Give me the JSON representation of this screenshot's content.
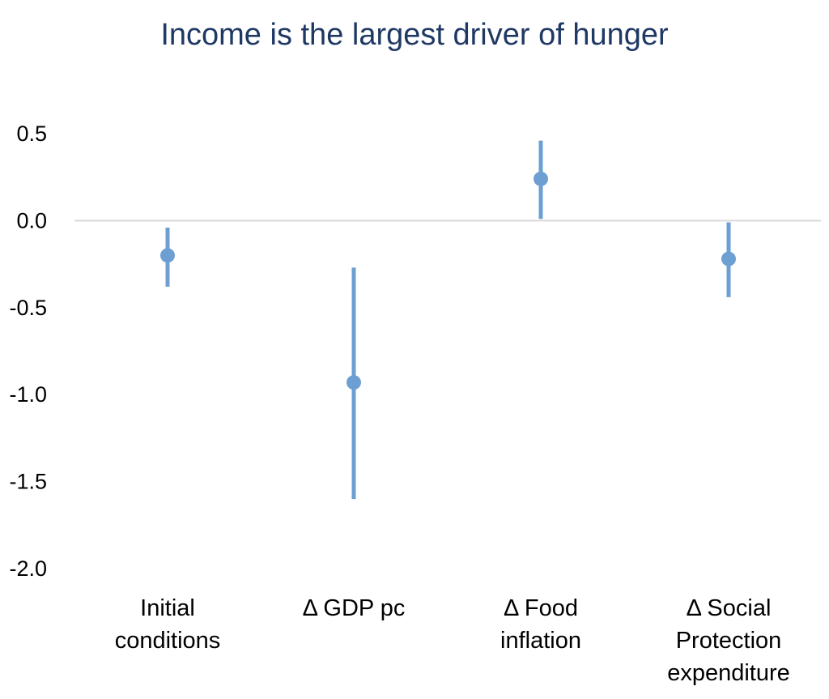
{
  "chart_data": {
    "type": "scatter",
    "title": "Income is the largest driver of hunger",
    "xlabel": "",
    "ylabel": "",
    "ylim": [
      -2.0,
      0.5
    ],
    "yticks": [
      0.5,
      0.0,
      -0.5,
      -1.0,
      -1.5,
      -2.0
    ],
    "ytick_labels": [
      "0.5",
      "0.0",
      "-0.5",
      "-1.0",
      "-1.5",
      "-2.0"
    ],
    "grid": false,
    "zero_line": true,
    "legend": "none",
    "color": "#6d9fd3",
    "categories": [
      [
        "Initial",
        "conditions"
      ],
      [
        "Δ GDP pc"
      ],
      [
        "Δ Food",
        "inflation"
      ],
      [
        "Δ Social",
        "Protection",
        "expenditure"
      ]
    ],
    "points": [
      {
        "value": -0.2,
        "low": -0.38,
        "high": -0.04
      },
      {
        "value": -0.93,
        "low": -1.6,
        "high": -0.27
      },
      {
        "value": 0.24,
        "low": 0.01,
        "high": 0.46
      },
      {
        "value": -0.22,
        "low": -0.44,
        "high": -0.01
      }
    ]
  }
}
